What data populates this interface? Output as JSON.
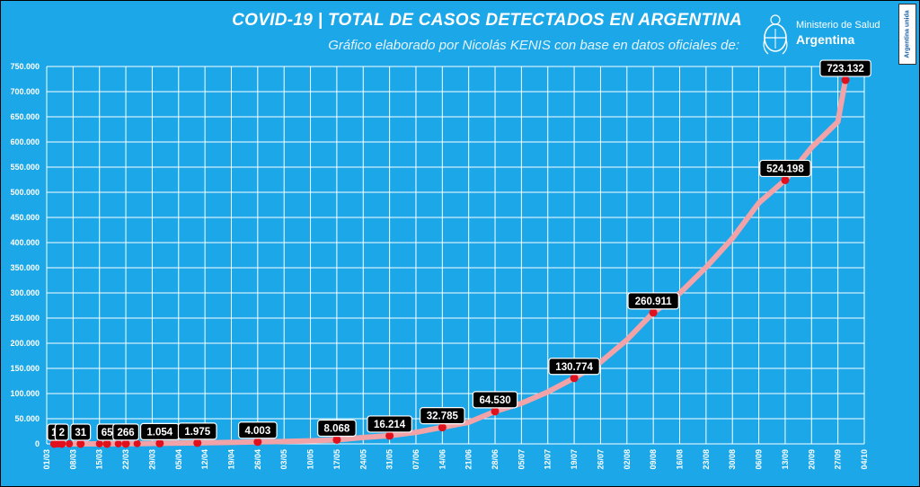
{
  "header": {
    "title": "COVID-19  |  TOTAL DE CASOS DETECTADOS EN ARGENTINA",
    "subtitle": "Gráfico elaborado por Nicolás KENIS con base en datos oficiales de:"
  },
  "logo": {
    "line1": "Ministerio de Salud",
    "line2": "Argentina",
    "icon": "argentina-coat-of-arms-icon"
  },
  "badge": {
    "text": "Argentina unida"
  },
  "colors": {
    "background": "#1ba7e8",
    "line": "#f2a3a8",
    "marker": "#e0101d",
    "label_bg": "#000000",
    "grid": "#ffffff"
  },
  "chart_data": {
    "type": "line",
    "title": "COVID-19  |  TOTAL DE CASOS DETECTADOS EN ARGENTINA",
    "xlabel": "",
    "ylabel": "",
    "grid": true,
    "xlim": [
      "01/03",
      "04/10"
    ],
    "ylim": [
      0,
      750000
    ],
    "yticks": [
      0,
      50000,
      100000,
      150000,
      200000,
      250000,
      300000,
      350000,
      400000,
      450000,
      500000,
      550000,
      600000,
      650000,
      700000,
      750000
    ],
    "ytick_labels": [
      "0",
      "50.000",
      "100.000",
      "150.000",
      "200.000",
      "250.000",
      "300.000",
      "350.000",
      "400.000",
      "450.000",
      "500.000",
      "550.000",
      "600.000",
      "650.000",
      "700.000",
      "750.000"
    ],
    "xtick_labels": [
      "01/03",
      "08/03",
      "15/03",
      "22/03",
      "29/03",
      "05/04",
      "12/04",
      "19/04",
      "26/04",
      "03/05",
      "10/05",
      "17/05",
      "24/05",
      "31/05",
      "07/06",
      "14/06",
      "21/06",
      "28/06",
      "05/07",
      "12/07",
      "19/07",
      "26/07",
      "02/08",
      "09/08",
      "16/08",
      "23/08",
      "30/08",
      "06/09",
      "13/09",
      "20/09",
      "27/09",
      "04/10"
    ],
    "series": [
      {
        "x": [
          "03/03",
          "04/03",
          "05/03",
          "07/03",
          "10/03",
          "15/03",
          "17/03",
          "20/03",
          "22/03",
          "25/03",
          "31/03",
          "10/04",
          "20/04",
          "26/04",
          "01/05",
          "10/05",
          "17/05",
          "24/05",
          "31/05",
          "07/06",
          "14/06",
          "21/06",
          "28/06",
          "05/07",
          "12/07",
          "19/07",
          "26/07",
          "02/08",
          "09/08",
          "16/08",
          "23/08",
          "30/08",
          "06/09",
          "13/09",
          "20/09",
          "27/09",
          "29/09"
        ],
        "values": [
          1,
          1,
          2,
          8,
          31,
          56,
          65,
          128,
          266,
          502,
          1054,
          1975,
          3031,
          4003,
          4532,
          6034,
          8068,
          12628,
          16214,
          22794,
          32785,
          42785,
          64530,
          80447,
          103265,
          130774,
          162526,
          206743,
          260911,
          299126,
          350867,
          408426,
          478792,
          524198,
          589012,
          640147,
          723132
        ]
      }
    ],
    "highlighted_points": [
      {
        "x": "03/03",
        "value": 1,
        "label": "1"
      },
      {
        "x": "05/03",
        "value": 2,
        "label": "2"
      },
      {
        "x": "10/03",
        "value": 31,
        "label": "31"
      },
      {
        "x": "17/03",
        "value": 65,
        "label": "65"
      },
      {
        "x": "22/03",
        "value": 266,
        "label": "266"
      },
      {
        "x": "31/03",
        "value": 1054,
        "label": "1.054"
      },
      {
        "x": "10/04",
        "value": 1975,
        "label": "1.975"
      },
      {
        "x": "26/04",
        "value": 4003,
        "label": "4.003"
      },
      {
        "x": "17/05",
        "value": 8068,
        "label": "8.068"
      },
      {
        "x": "31/05",
        "value": 16214,
        "label": "16.214"
      },
      {
        "x": "14/06",
        "value": 32785,
        "label": "32.785"
      },
      {
        "x": "28/06",
        "value": 64530,
        "label": "64.530"
      },
      {
        "x": "19/07",
        "value": 130774,
        "label": "130.774"
      },
      {
        "x": "09/08",
        "value": 260911,
        "label": "260.911"
      },
      {
        "x": "13/09",
        "value": 524198,
        "label": "524.198"
      },
      {
        "x": "29/09",
        "value": 723132,
        "label": "723.132"
      }
    ],
    "extra_markers": [
      {
        "x": "04/03",
        "value": 1
      },
      {
        "x": "07/03",
        "value": 8
      },
      {
        "x": "15/03",
        "value": 56
      },
      {
        "x": "20/03",
        "value": 128
      },
      {
        "x": "25/03",
        "value": 502
      }
    ]
  }
}
